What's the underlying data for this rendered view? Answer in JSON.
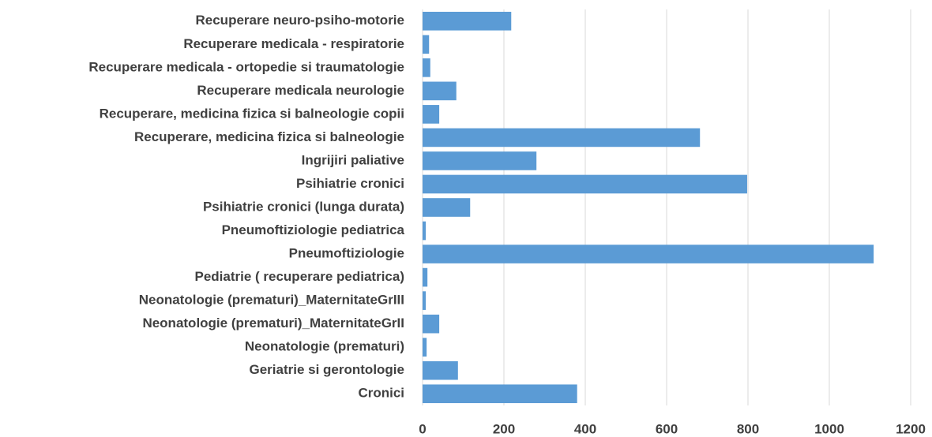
{
  "chart_data": {
    "type": "barh",
    "categories": [
      "Recuperare neuro-psiho-motorie",
      "Recuperare medicala - respiratorie",
      "Recuperare medicala - ortopedie  si traumatologie",
      "Recuperare medicala neurologie",
      "Recuperare, medicina fizica si balneologie copii",
      "Recuperare, medicina fizica si balneologie",
      "Ingrijiri paliative",
      "Psihiatrie cronici",
      "Psihiatrie cronici (lunga durata)",
      "Pneumoftiziologie pediatrica",
      "Pneumoftiziologie",
      "Pediatrie ( recuperare pediatrica)",
      "Neonatologie (prematuri)_MaternitateGrIII",
      "Neonatologie (prematuri)_MaternitateGrII",
      "Neonatologie (prematuri)",
      "Geriatrie si gerontologie",
      "Cronici"
    ],
    "values": [
      218,
      16,
      19,
      83,
      41,
      682,
      280,
      798,
      117,
      8,
      1109,
      12,
      8,
      41,
      10,
      87,
      380
    ],
    "color": "#5b9bd5",
    "xlim": [
      0,
      1200
    ],
    "xticks": [
      0,
      200,
      400,
      600,
      800,
      1000,
      1200
    ],
    "grid": true
  }
}
